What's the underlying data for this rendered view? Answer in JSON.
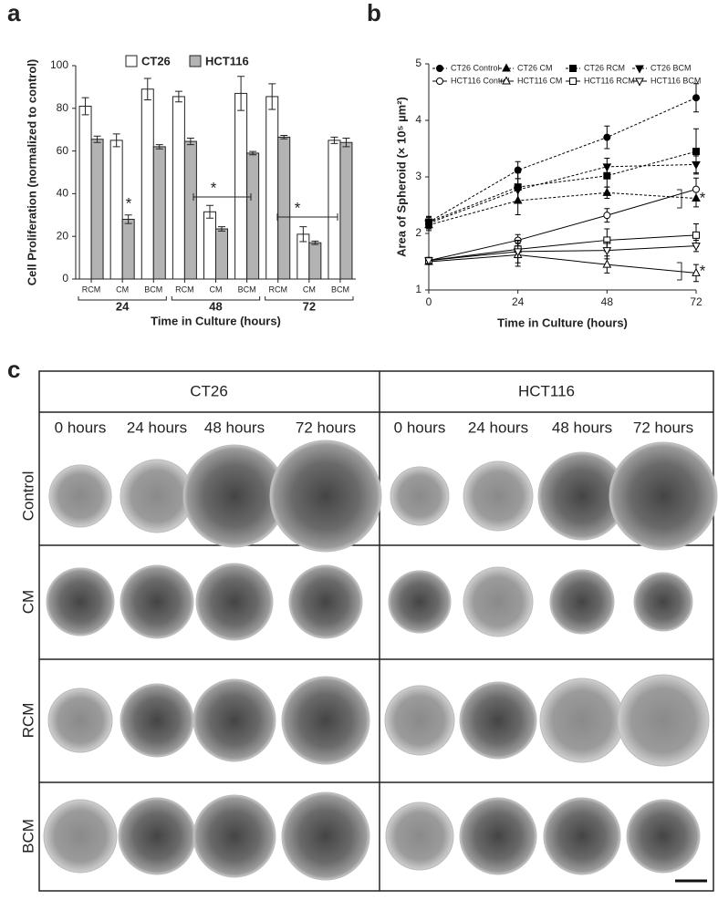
{
  "chart_data": [
    {
      "type": "bar",
      "panel": "a",
      "ylabel": "Cell Proliferation (normalized to control)",
      "xlabel": "Time in Culture (hours)",
      "categories": [
        "RCM",
        "CM",
        "BCM",
        "RCM",
        "CM",
        "BCM",
        "RCM",
        "CM",
        "BCM"
      ],
      "groups": [
        "24",
        "48",
        "72"
      ],
      "series": [
        {
          "name": "CT26",
          "color": "#ffffff",
          "values": [
            81,
            65,
            89,
            85.5,
            31.5,
            87,
            85.5,
            21,
            65
          ],
          "errors": [
            4,
            3,
            5,
            2.5,
            3,
            8,
            6,
            3.5,
            1.5
          ]
        },
        {
          "name": "HCT116",
          "color": "#b3b3b3",
          "values": [
            65.5,
            28,
            62,
            64.5,
            23.5,
            59,
            66.5,
            17,
            64
          ],
          "errors": [
            1.5,
            2,
            1,
            1.5,
            1,
            0.8,
            0.8,
            0.8,
            2
          ]
        }
      ],
      "ylim": [
        0,
        100
      ],
      "yticks": [
        0,
        20,
        40,
        60,
        80,
        100
      ],
      "annotations": [
        "*",
        "*",
        "*"
      ]
    },
    {
      "type": "line",
      "panel": "b",
      "ylabel": "Area of Spheroid (× 10⁵ µm²)",
      "xlabel": "Time in Culture (hours)",
      "x": [
        0,
        24,
        48,
        72
      ],
      "series": [
        {
          "name": "CT26 Control",
          "color": "#000000",
          "marker": "circle",
          "filled": true,
          "dashed": true,
          "values": [
            2.2,
            3.12,
            3.7,
            4.4
          ],
          "errors": [
            0.1,
            0.15,
            0.2,
            0.25
          ]
        },
        {
          "name": "CT26 CM",
          "color": "#000000",
          "marker": "triangle-up",
          "filled": true,
          "dashed": true,
          "values": [
            2.15,
            2.58,
            2.72,
            2.62
          ],
          "errors": [
            0.1,
            0.25,
            0.1,
            0.15
          ]
        },
        {
          "name": "CT26 RCM",
          "color": "#000000",
          "marker": "square",
          "filled": true,
          "dashed": true,
          "values": [
            2.2,
            2.82,
            3.02,
            3.45
          ],
          "errors": [
            0.1,
            0.25,
            0.2,
            0.4
          ]
        },
        {
          "name": "CT26 BCM",
          "color": "#000000",
          "marker": "triangle-down",
          "filled": true,
          "dashed": true,
          "values": [
            2.18,
            2.77,
            3.18,
            3.22
          ],
          "errors": [
            0.1,
            0.2,
            0.15,
            0.15
          ]
        },
        {
          "name": "HCT116 Control",
          "color": "#000000",
          "marker": "circle",
          "filled": false,
          "dashed": false,
          "values": [
            1.52,
            1.88,
            2.32,
            2.78
          ],
          "errors": [
            0.05,
            0.1,
            0.12,
            0.2
          ]
        },
        {
          "name": "HCT116 CM",
          "color": "#000000",
          "marker": "triangle-up",
          "filled": false,
          "dashed": false,
          "values": [
            1.5,
            1.62,
            1.45,
            1.3
          ],
          "errors": [
            0.05,
            0.2,
            0.15,
            0.15
          ]
        },
        {
          "name": "HCT116 RCM",
          "color": "#000000",
          "marker": "square",
          "filled": false,
          "dashed": false,
          "values": [
            1.52,
            1.72,
            1.88,
            1.97
          ],
          "errors": [
            0.05,
            0.15,
            0.2,
            0.2
          ]
        },
        {
          "name": "HCT116 BCM",
          "color": "#000000",
          "marker": "triangle-down",
          "filled": false,
          "dashed": false,
          "values": [
            1.52,
            1.68,
            1.7,
            1.78
          ],
          "errors": [
            0.05,
            0.2,
            0.15,
            0.1
          ]
        }
      ],
      "xlim": [
        0,
        72
      ],
      "xticks": [
        0,
        24,
        48,
        72
      ],
      "ylim": [
        1,
        5
      ],
      "yticks": [
        1,
        2,
        3,
        4,
        5
      ],
      "annotations": [
        "*",
        "*"
      ]
    }
  ],
  "image_grid": {
    "panel": "c",
    "groups": [
      "CT26",
      "HCT116"
    ],
    "columns": [
      "0 hours",
      "24 hours",
      "48 hours",
      "72 hours",
      "0 hours",
      "24 hours",
      "48 hours",
      "72 hours"
    ],
    "rows": [
      "Control",
      "CM",
      "RCM",
      "BCM"
    ]
  }
}
